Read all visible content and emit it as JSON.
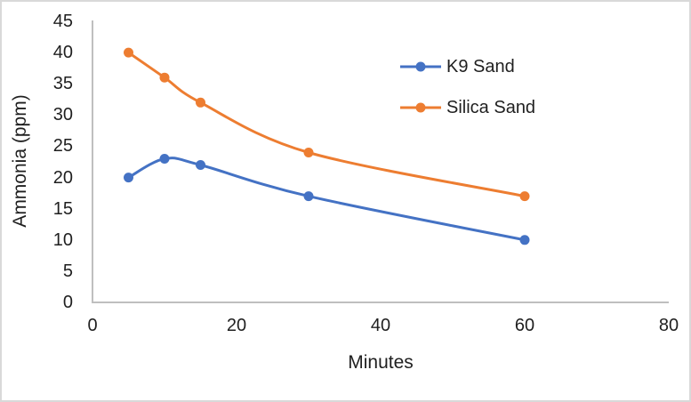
{
  "frame": {
    "background": "#ffffff",
    "border_color": "#d9d9d9"
  },
  "chart_data": {
    "type": "line",
    "x": [
      5,
      10,
      15,
      30,
      60
    ],
    "series": [
      {
        "name": "K9 Sand",
        "color": "#4472C4",
        "values": [
          20,
          23,
          22,
          17,
          10
        ]
      },
      {
        "name": "Silica Sand",
        "color": "#ED7D31",
        "values": [
          40,
          36,
          32,
          24,
          17
        ]
      }
    ],
    "title": "",
    "xlabel": "Minutes",
    "ylabel": "Ammonia (ppm)",
    "xlim": [
      0,
      80
    ],
    "ylim": [
      0,
      45
    ],
    "xticks": [
      0,
      20,
      40,
      60,
      80
    ],
    "yticks": [
      0,
      5,
      10,
      15,
      20,
      25,
      30,
      35,
      40,
      45
    ],
    "grid": false,
    "smooth": true,
    "marker": "circle",
    "legend_position": "top-right",
    "axis_color": "#bfbfbf",
    "text_color": "#1f1f1f"
  }
}
